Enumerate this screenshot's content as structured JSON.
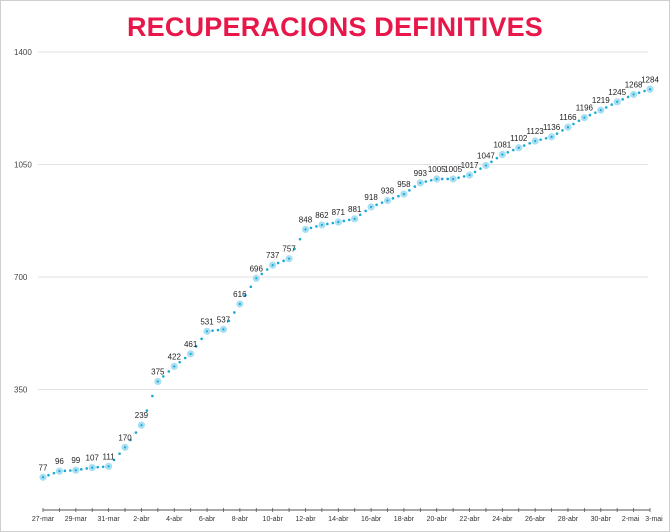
{
  "chart_data": {
    "type": "line",
    "title": "RECUPERACIONS DEFINITIVES",
    "xlabel": "",
    "ylabel": "",
    "ylim": [
      0,
      1400
    ],
    "yticks": [
      350,
      700,
      1050,
      1400
    ],
    "grid": true,
    "x": [
      "27-mar",
      "28-mar",
      "29-mar",
      "30-mar",
      "31-mar",
      "1-abr",
      "2-abr",
      "3-abr",
      "4-abr",
      "5-abr",
      "6-abr",
      "7-abr",
      "8-abr",
      "9-abr",
      "10-abr",
      "11-abr",
      "12-abr",
      "13-abr",
      "14-abr",
      "15-abr",
      "16-abr",
      "17-abr",
      "18-abr",
      "19-abr",
      "20-abr",
      "21-abr",
      "22-abr",
      "23-abr",
      "24-abr",
      "25-abr",
      "26-abr",
      "27-abr",
      "28-abr",
      "29-abr",
      "30-abr",
      "1-mai",
      "2-mai",
      "3-mai"
    ],
    "xtick_labels": [
      "27-mar",
      "29-mar",
      "31-mar",
      "2-abr",
      "4-abr",
      "6-abr",
      "8-abr",
      "10-abr",
      "12-abr",
      "14-abr",
      "16-abr",
      "18-abr",
      "20-abr",
      "22-abr",
      "24-abr",
      "26-abr",
      "28-abr",
      "30-abr",
      "2-mai",
      "3-mai"
    ],
    "values": [
      77,
      96,
      99,
      107,
      111,
      170,
      239,
      375,
      422,
      461,
      531,
      537,
      616,
      696,
      737,
      757,
      848,
      862,
      871,
      881,
      918,
      938,
      958,
      993,
      1005,
      1005,
      1017,
      1047,
      1081,
      1102,
      1123,
      1136,
      1166,
      1196,
      1219,
      1245,
      1268,
      1284
    ],
    "colors": {
      "title": "#e8174a",
      "marker": "#a8dff2",
      "dots": "#1aa9d6"
    }
  }
}
